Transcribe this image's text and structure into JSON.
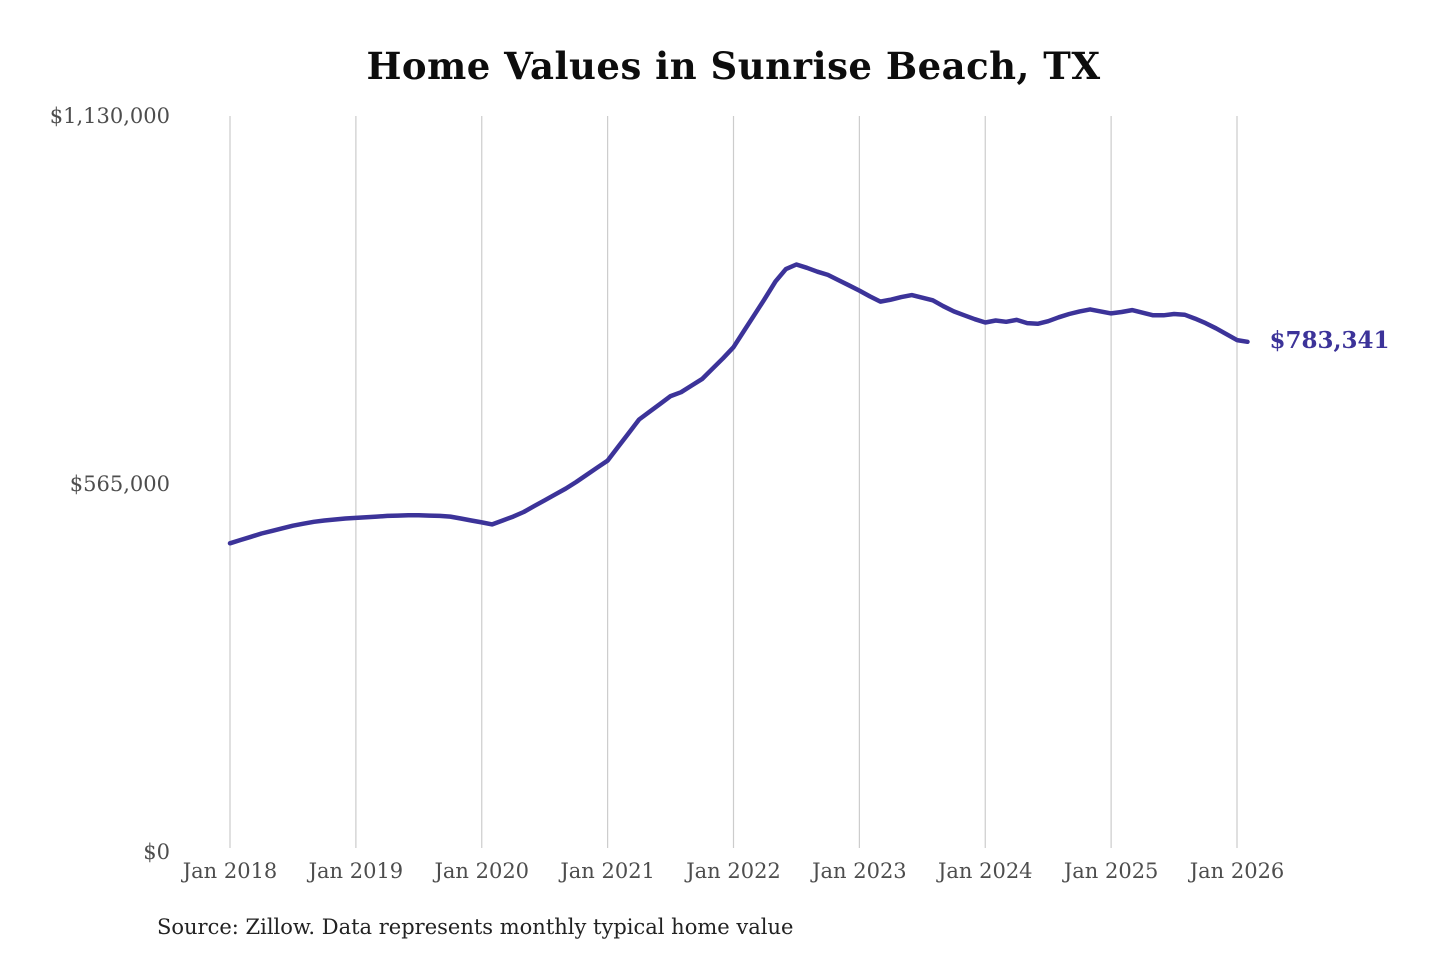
{
  "title": "Home Values in Sunrise Beach, TX",
  "end_label": "$783,341",
  "source_note": "Source: Zillow. Data represents monthly typical home value",
  "colors": {
    "line": "#3c3399",
    "end_label_text": "#3c3399",
    "grid": "#cccccc",
    "axis_text": "#4d4d4d",
    "title_text": "#0d0d0d",
    "source_text": "#222222",
    "background": "#ffffff"
  },
  "chart_data": {
    "type": "line",
    "title": "Home Values in Sunrise Beach, TX",
    "series_name": "Monthly typical home value (USD)",
    "unit": "USD",
    "legend": "none",
    "grid": "vertical-only",
    "ylim": [
      0,
      1130000
    ],
    "y_ticks": [
      {
        "value": 0,
        "label": "$0"
      },
      {
        "value": 565000,
        "label": "$565,000"
      },
      {
        "value": 1130000,
        "label": "$1,130,000"
      }
    ],
    "x_tick_labels": [
      "Jan 2018",
      "Jan 2019",
      "Jan 2020",
      "Jan 2021",
      "Jan 2022",
      "Jan 2023",
      "Jan 2024",
      "Jan 2025",
      "Jan 2026"
    ],
    "last_point": {
      "x": "2026-02",
      "value": 783341,
      "label": "$783,341"
    },
    "peak_point": {
      "x": "2022-07",
      "value": 902000
    },
    "x": [
      "2018-01",
      "2018-02",
      "2018-03",
      "2018-04",
      "2018-05",
      "2018-06",
      "2018-07",
      "2018-08",
      "2018-09",
      "2018-10",
      "2018-11",
      "2018-12",
      "2019-01",
      "2019-02",
      "2019-03",
      "2019-04",
      "2019-05",
      "2019-06",
      "2019-07",
      "2019-08",
      "2019-09",
      "2019-10",
      "2019-11",
      "2019-12",
      "2020-01",
      "2020-02",
      "2020-03",
      "2020-04",
      "2020-05",
      "2020-06",
      "2020-07",
      "2020-08",
      "2020-09",
      "2020-10",
      "2020-11",
      "2020-12",
      "2021-01",
      "2021-02",
      "2021-03",
      "2021-04",
      "2021-05",
      "2021-06",
      "2021-07",
      "2021-08",
      "2021-09",
      "2021-10",
      "2021-11",
      "2021-12",
      "2022-01",
      "2022-02",
      "2022-03",
      "2022-04",
      "2022-05",
      "2022-06",
      "2022-07",
      "2022-08",
      "2022-09",
      "2022-10",
      "2022-11",
      "2022-12",
      "2023-01",
      "2023-02",
      "2023-03",
      "2023-04",
      "2023-05",
      "2023-06",
      "2023-07",
      "2023-08",
      "2023-09",
      "2023-10",
      "2023-11",
      "2023-12",
      "2024-01",
      "2024-02",
      "2024-03",
      "2024-04",
      "2024-05",
      "2024-06",
      "2024-07",
      "2024-08",
      "2024-09",
      "2024-10",
      "2024-11",
      "2024-12",
      "2025-01",
      "2025-02",
      "2025-03",
      "2025-04",
      "2025-05",
      "2025-06",
      "2025-07",
      "2025-08",
      "2025-09",
      "2025-10",
      "2025-11",
      "2025-12",
      "2026-01",
      "2026-02"
    ],
    "values": [
      474000,
      479000,
      484000,
      489000,
      493000,
      497000,
      501000,
      504000,
      507000,
      509000,
      510500,
      512000,
      513000,
      514000,
      515000,
      516000,
      516500,
      517000,
      517000,
      516500,
      516000,
      515000,
      512000,
      509000,
      506000,
      503000,
      509000,
      515000,
      522000,
      531000,
      540000,
      549000,
      558000,
      568000,
      579000,
      590000,
      601000,
      622000,
      643000,
      664000,
      676000,
      688000,
      700000,
      706000,
      716000,
      726000,
      742000,
      758000,
      775000,
      800000,
      825000,
      850000,
      876000,
      895000,
      902000,
      897000,
      891000,
      886000,
      878000,
      870000,
      862000,
      853000,
      845000,
      848000,
      852000,
      855000,
      851000,
      847000,
      838000,
      830000,
      824000,
      818000,
      813000,
      816000,
      814000,
      817000,
      812000,
      811000,
      815000,
      821000,
      826000,
      830000,
      833000,
      830000,
      827000,
      829000,
      832000,
      828000,
      824000,
      824000,
      826000,
      825000,
      819000,
      812000,
      804000,
      795000,
      786000,
      783341
    ]
  }
}
